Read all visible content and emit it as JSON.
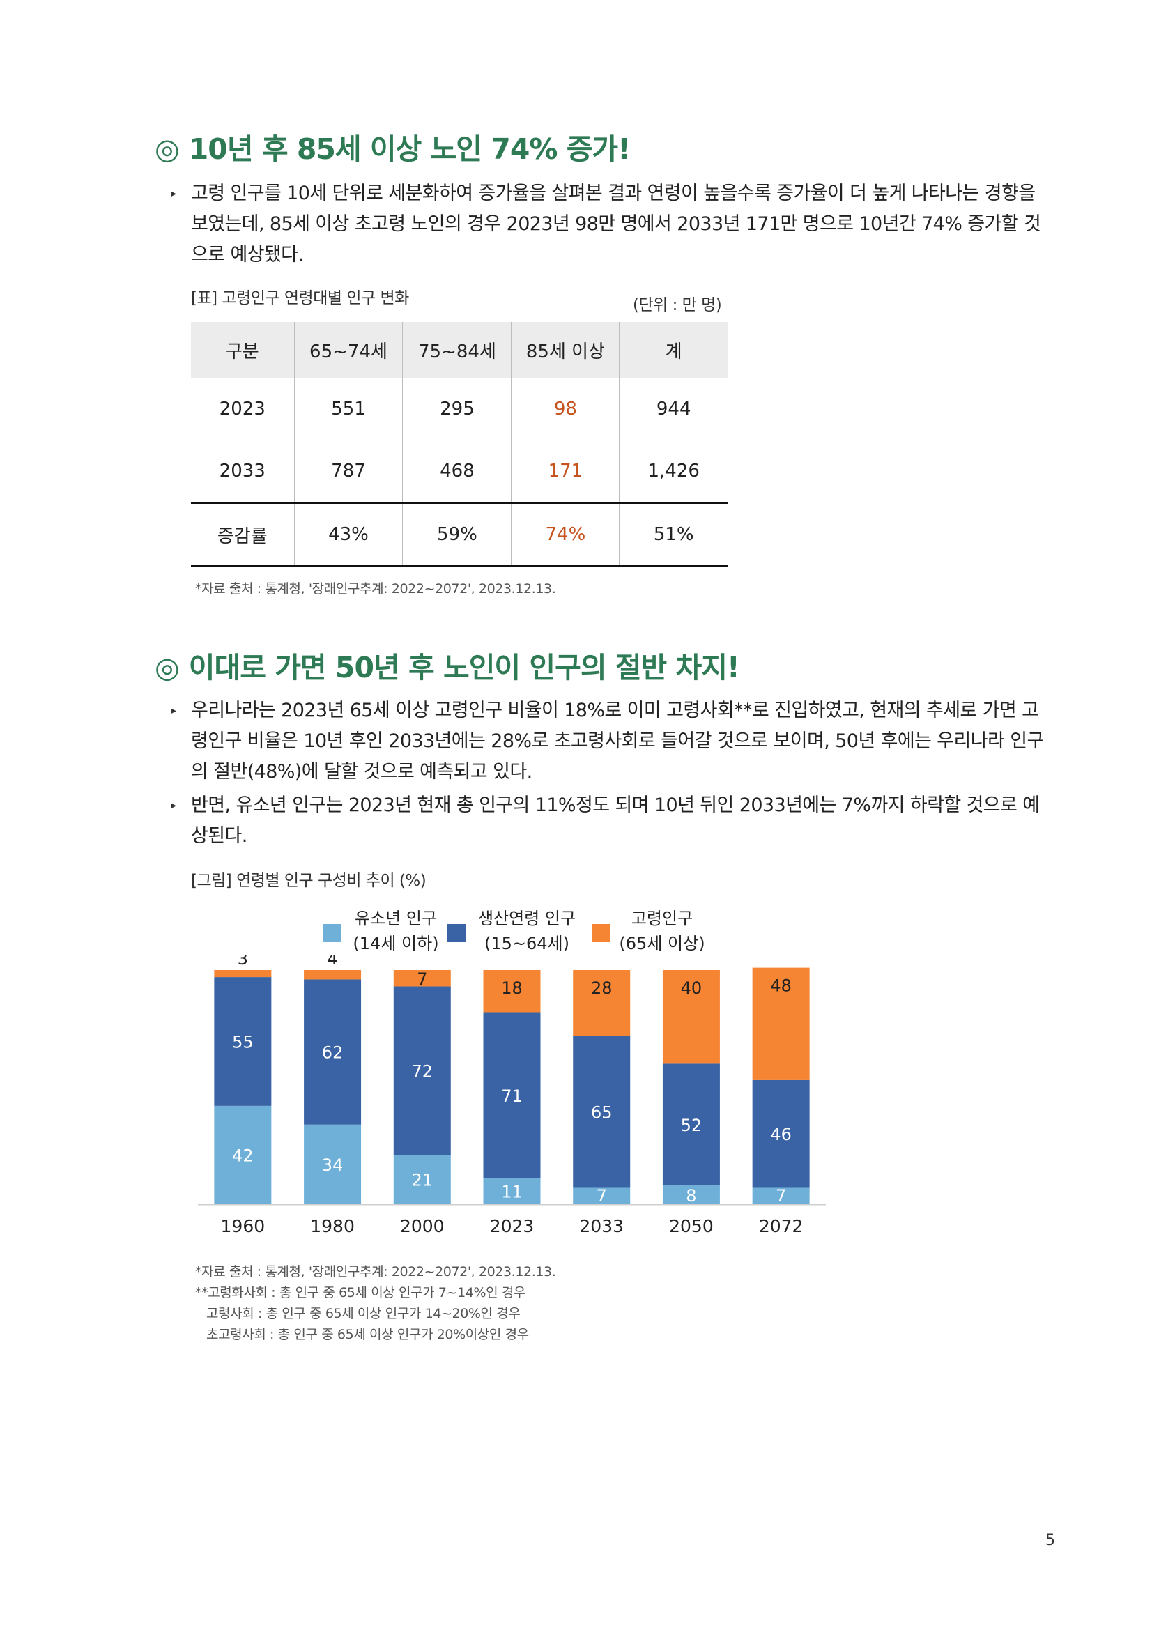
{
  "section1": {
    "heading_mark": "◎",
    "heading": "10년 후 85세 이상 노인 74% 증가!",
    "bullet": "고령 인구를 10세 단위로 세분화하여 증가율을 살펴본 결과 연령이 높을수록 증가율이 더 높게 나타나는 경향을 보였는데, 85세 이상 초고령 노인의 경우 2023년 98만 명에서 2033년 171만 명으로 10년간 74% 증가할 것으로 예상됐다.",
    "table_caption": "[표] 고령인구 연령대별 인구 변화",
    "unit": "(단위 : 만 명)",
    "table": {
      "headers": [
        "구분",
        "65~74세",
        "75~84세",
        "85세 이상",
        "계"
      ],
      "rows": [
        [
          "2023",
          "551",
          "295",
          "98",
          "944"
        ],
        [
          "2033",
          "787",
          "468",
          "171",
          "1,426"
        ],
        [
          "증감률",
          "43%",
          "59%",
          "74%",
          "51%"
        ]
      ]
    },
    "source": "*자료 출처 : 통계청, '장래인구추계: 2022~2072', 2023.12.13."
  },
  "section2": {
    "heading_mark": "◎",
    "heading": "이대로 가면 50년 후 노인이 인구의 절반 차지!",
    "bullets": [
      "우리나라는 2023년 65세 이상 고령인구 비율이 18%로 이미 고령사회**로 진입하였고, 현재의 추세로 가면 고령인구 비율은 10년 후인 2033년에는 28%로 초고령사회로 들어갈 것으로 보이며, 50년 후에는 우리나라 인구의 절반(48%)에 달할 것으로 예측되고 있다.",
      "반면, 유소년 인구는 2023년 현재 총 인구의 11%정도 되며 10년 뒤인 2033년에는 7%까지 하락할 것으로 예상된다."
    ],
    "figure_caption": "[그림] 연령별 인구 구성비 추이 (%)",
    "source_lines": [
      "*자료 출처 : 통계청, '장래인구추계: 2022~2072', 2023.12.13.",
      "**고령화사회 : 총 인구 중 65세 이상 인구가 7~14%인 경우",
      "고령사회 : 총 인구 중 65세 이상 인구가 14~20%인 경우",
      "초고령사회 : 총 인구 중 65세 이상 인구가 20%이상인 경우"
    ]
  },
  "chart_data": {
    "type": "bar",
    "stacked": true,
    "categories": [
      "1960",
      "1980",
      "2000",
      "2023",
      "2033",
      "2050",
      "2072"
    ],
    "series": [
      {
        "name": "유소년 인구\n(14세 이하)",
        "color": "#6fb0d9",
        "values": [
          42,
          34,
          21,
          11,
          7,
          8,
          7
        ]
      },
      {
        "name": "생산연령 인구\n(15~64세)",
        "color": "#3a63a6",
        "values": [
          55,
          62,
          72,
          71,
          65,
          52,
          46
        ]
      },
      {
        "name": "고령인구\n(65세 이상)",
        "color": "#f58433",
        "values": [
          3,
          4,
          7,
          18,
          28,
          40,
          48
        ]
      }
    ],
    "ylim": [
      0,
      100
    ],
    "legend_position": "top"
  },
  "page_number": "5"
}
